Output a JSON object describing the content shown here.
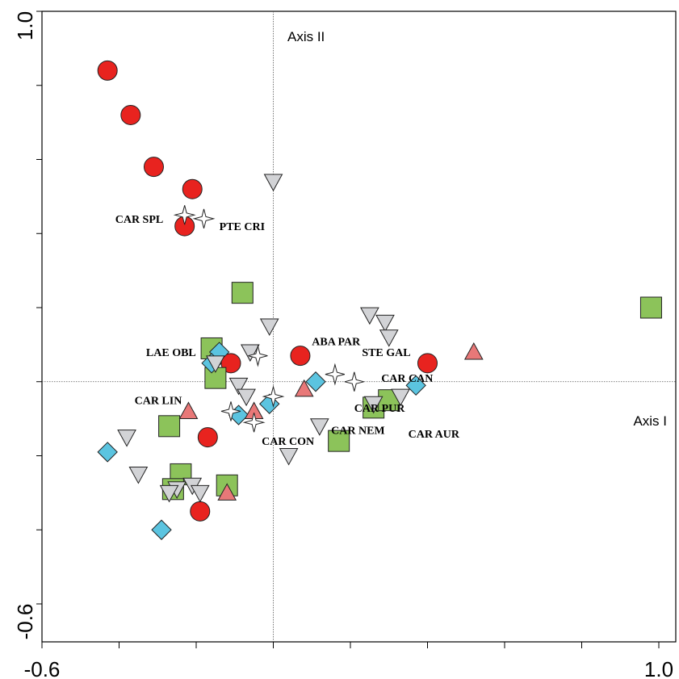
{
  "chart_data": {
    "type": "scatter",
    "title": "",
    "xlim": [
      -0.6,
      1.0
    ],
    "ylim": [
      -0.6,
      1.0
    ],
    "x_tick_labels": [
      "-0.6",
      "1.0"
    ],
    "y_tick_labels": [
      "1.0",
      "-0.6"
    ],
    "axis_i_label": "Axis I",
    "axis_ii_label": "Axis II",
    "grid": false,
    "colors": {
      "circle": "#e8231f",
      "square": "#8cc35a",
      "diamond": "#5bc4e0",
      "triangle_up": "#e87878",
      "triangle_down": "#d2d3d6",
      "star": "#ffffff"
    },
    "series": [
      {
        "marker": "circle",
        "points": [
          [
            -0.43,
            0.84
          ],
          [
            -0.37,
            0.72
          ],
          [
            -0.31,
            0.58
          ],
          [
            -0.21,
            0.52
          ],
          [
            -0.23,
            0.42
          ],
          [
            -0.11,
            0.05
          ],
          [
            0.07,
            0.07
          ],
          [
            0.4,
            0.05
          ],
          [
            -0.17,
            -0.15
          ],
          [
            -0.19,
            -0.35
          ]
        ]
      },
      {
        "marker": "square",
        "points": [
          [
            -0.08,
            0.24
          ],
          [
            0.98,
            0.2
          ],
          [
            -0.16,
            0.09
          ],
          [
            -0.15,
            0.01
          ],
          [
            -0.27,
            -0.12
          ],
          [
            0.26,
            -0.07
          ],
          [
            0.3,
            -0.05
          ],
          [
            0.17,
            -0.16
          ],
          [
            -0.24,
            -0.25
          ],
          [
            -0.26,
            -0.29
          ],
          [
            -0.12,
            -0.28
          ]
        ]
      },
      {
        "marker": "diamond",
        "points": [
          [
            -0.14,
            0.08
          ],
          [
            -0.16,
            0.05
          ],
          [
            -0.01,
            -0.06
          ],
          [
            -0.09,
            -0.09
          ],
          [
            0.11,
            0.0
          ],
          [
            0.37,
            -0.01
          ],
          [
            -0.43,
            -0.19
          ],
          [
            -0.29,
            -0.4
          ]
        ]
      },
      {
        "marker": "triangle_up",
        "points": [
          [
            0.52,
            0.08
          ],
          [
            0.08,
            -0.02
          ],
          [
            -0.22,
            -0.08
          ],
          [
            -0.05,
            -0.08
          ],
          [
            -0.12,
            -0.3
          ]
        ]
      },
      {
        "marker": "triangle_down",
        "points": [
          [
            0.0,
            0.54
          ],
          [
            -0.01,
            0.15
          ],
          [
            0.25,
            0.18
          ],
          [
            0.29,
            0.16
          ],
          [
            0.3,
            0.12
          ],
          [
            -0.06,
            0.08
          ],
          [
            -0.09,
            -0.01
          ],
          [
            -0.07,
            -0.04
          ],
          [
            0.33,
            -0.04
          ],
          [
            0.26,
            -0.06
          ],
          [
            0.12,
            -0.12
          ],
          [
            -0.38,
            -0.15
          ],
          [
            0.04,
            -0.2
          ],
          [
            -0.35,
            -0.25
          ],
          [
            -0.25,
            -0.29
          ],
          [
            -0.21,
            -0.28
          ],
          [
            -0.27,
            -0.3
          ],
          [
            -0.19,
            -0.3
          ],
          [
            -0.15,
            0.05
          ]
        ]
      },
      {
        "marker": "star",
        "points": [
          [
            -0.23,
            0.45
          ],
          [
            -0.18,
            0.44
          ],
          [
            -0.04,
            0.07
          ],
          [
            0.16,
            0.02
          ],
          [
            0.21,
            0.0
          ],
          [
            0.0,
            -0.04
          ],
          [
            -0.11,
            -0.08
          ],
          [
            -0.05,
            -0.11
          ]
        ]
      }
    ],
    "labels": [
      {
        "text": "CAR SPL",
        "x": -0.41,
        "y": 0.44
      },
      {
        "text": "PTE CRI",
        "x": -0.14,
        "y": 0.42
      },
      {
        "text": "LAE OBL",
        "x": -0.33,
        "y": 0.08
      },
      {
        "text": "ABA PAR",
        "x": 0.1,
        "y": 0.11
      },
      {
        "text": "STE GAL",
        "x": 0.23,
        "y": 0.08
      },
      {
        "text": "CAR CAN",
        "x": 0.28,
        "y": 0.01
      },
      {
        "text": "CAR LIN",
        "x": -0.36,
        "y": -0.05
      },
      {
        "text": "CAR PUR",
        "x": 0.21,
        "y": -0.07
      },
      {
        "text": "CAR NEM",
        "x": 0.15,
        "y": -0.13
      },
      {
        "text": "CAR CON",
        "x": -0.03,
        "y": -0.16
      },
      {
        "text": "CAR AUR",
        "x": 0.35,
        "y": -0.14
      }
    ]
  }
}
